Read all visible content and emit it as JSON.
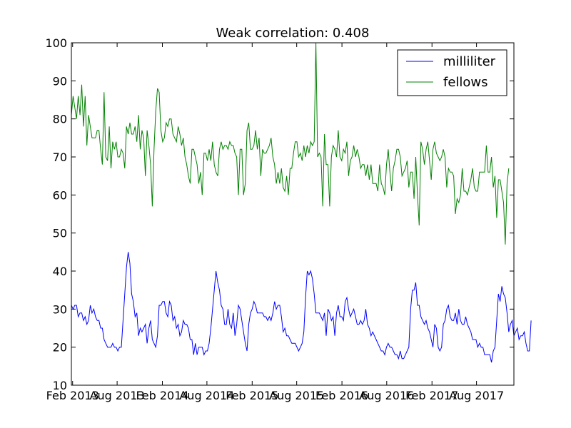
{
  "chart_data": {
    "type": "line",
    "title": "Weak correlation: 0.408",
    "xlabel": "",
    "ylabel": "",
    "ylim": [
      10,
      100
    ],
    "xlim": [
      "2013-01-27",
      "2017-12-31"
    ],
    "y_ticks": [
      10,
      20,
      30,
      40,
      50,
      60,
      70,
      80,
      90,
      100
    ],
    "x_ticks": [
      {
        "date": "2013-02-01",
        "label": "Feb 2013"
      },
      {
        "date": "2013-08-01",
        "label": "Aug 2013"
      },
      {
        "date": "2014-02-01",
        "label": "Feb 2014"
      },
      {
        "date": "2014-08-01",
        "label": "Aug 2014"
      },
      {
        "date": "2015-02-01",
        "label": "Feb 2015"
      },
      {
        "date": "2015-08-01",
        "label": "Aug 2015"
      },
      {
        "date": "2016-02-01",
        "label": "Feb 2016"
      },
      {
        "date": "2016-08-01",
        "label": "Aug 2016"
      },
      {
        "date": "2017-02-01",
        "label": "Feb 2017"
      },
      {
        "date": "2017-08-01",
        "label": "Aug 2017"
      }
    ],
    "grid": false,
    "legend_position": "top-right",
    "x_start": "2013-01-27",
    "x_step_days": 7,
    "series": [
      {
        "name": "milliliter",
        "color": "#0000ff",
        "values": [
          31,
          30,
          31,
          31,
          28,
          29,
          29,
          27,
          28,
          26,
          27,
          31,
          29,
          30,
          28,
          27,
          27,
          25,
          25,
          22,
          21,
          20,
          20,
          20,
          21,
          20,
          20,
          19,
          20,
          20,
          27,
          34,
          41,
          45,
          42,
          34,
          32,
          28,
          29,
          23,
          25,
          24,
          25,
          26,
          21,
          25,
          27,
          22,
          21,
          20,
          23,
          31,
          31,
          32,
          32,
          29,
          28,
          32,
          31,
          27,
          28,
          25,
          26,
          23,
          24,
          27,
          26,
          26,
          25,
          22,
          22,
          18,
          21,
          18,
          20,
          20,
          20,
          18,
          19,
          19,
          21,
          25,
          30,
          35,
          40,
          37,
          35,
          31,
          30,
          26,
          26,
          30,
          26,
          25,
          29,
          23,
          26,
          31,
          30,
          27,
          24,
          21,
          19,
          26,
          29,
          30,
          32,
          31,
          29,
          29,
          29,
          29,
          28,
          28,
          27,
          28,
          27,
          29,
          32,
          30,
          31,
          31,
          28,
          24,
          25,
          23,
          23,
          22,
          21,
          21,
          21,
          20,
          19,
          20,
          21,
          24,
          33,
          40,
          39,
          40,
          38,
          34,
          29,
          29,
          29,
          28,
          27,
          29,
          23,
          30,
          29,
          27,
          28,
          23,
          29,
          31,
          28,
          28,
          27,
          32,
          33,
          30,
          28,
          29,
          30,
          28,
          26,
          26,
          27,
          26,
          27,
          30,
          26,
          25,
          23,
          24,
          23,
          22,
          21,
          20,
          19,
          19,
          18,
          20,
          21,
          20,
          20,
          19,
          18,
          18,
          17,
          19,
          17,
          17,
          18,
          19,
          20,
          30,
          35,
          35,
          37,
          31,
          31,
          28,
          27,
          26,
          27,
          25,
          24,
          22,
          20,
          26,
          25,
          20,
          19,
          20,
          26,
          27,
          30,
          31,
          28,
          27,
          27,
          29,
          26,
          30,
          27,
          26,
          26,
          28,
          26,
          25,
          24,
          22,
          22,
          22,
          20,
          21,
          20,
          20,
          18,
          18,
          18,
          18,
          16,
          19,
          20,
          27,
          34,
          32,
          36,
          34,
          33,
          29,
          24,
          26,
          27,
          23,
          24,
          25,
          22,
          23,
          23,
          24,
          21,
          19,
          19,
          27
        ],
        "note": "weekly"
      },
      {
        "name": "fellows",
        "color": "#008000",
        "values": [
          81,
          86,
          83,
          80,
          86,
          81,
          89,
          78,
          86,
          73,
          81,
          78,
          75,
          75,
          75,
          77,
          77,
          72,
          68,
          87,
          70,
          69,
          78,
          67,
          74,
          72,
          74,
          70,
          70,
          72,
          71,
          67,
          78,
          76,
          79,
          76,
          76,
          78,
          74,
          81,
          72,
          77,
          75,
          65,
          77,
          73,
          68,
          57,
          72,
          82,
          88,
          87,
          77,
          74,
          75,
          79,
          78,
          80,
          80,
          76,
          75,
          74,
          78,
          76,
          73,
          75,
          70,
          68,
          65,
          63,
          72,
          72,
          70,
          68,
          63,
          66,
          60,
          71,
          71,
          69,
          72,
          69,
          74,
          68,
          66,
          65,
          72,
          74,
          72,
          73,
          73,
          72,
          74,
          73,
          73,
          71,
          70,
          60,
          72,
          72,
          60,
          63,
          77,
          79,
          72,
          72,
          73,
          77,
          72,
          75,
          65,
          72,
          71,
          71,
          72,
          73,
          75,
          70,
          68,
          63,
          66,
          63,
          67,
          62,
          61,
          65,
          60,
          67,
          67,
          71,
          74,
          74,
          70,
          71,
          69,
          73,
          70,
          73,
          71,
          74,
          73,
          74,
          100,
          70,
          71,
          70,
          57,
          76,
          68,
          68,
          57,
          70,
          73,
          72,
          70,
          77,
          70,
          69,
          72,
          71,
          74,
          65,
          69,
          70,
          73,
          70,
          72,
          70,
          67,
          68,
          68,
          65,
          68,
          64,
          68,
          63,
          63,
          63,
          61,
          68,
          63,
          62,
          60,
          68,
          72,
          66,
          61,
          67,
          69,
          72,
          72,
          70,
          65,
          66,
          67,
          69,
          62,
          66,
          66,
          59,
          70,
          60,
          52,
          74,
          72,
          68,
          72,
          74,
          69,
          64,
          72,
          74,
          71,
          70,
          69,
          70,
          72,
          70,
          62,
          67,
          66,
          66,
          65,
          55,
          59,
          58,
          60,
          67,
          61,
          61,
          60,
          62,
          64,
          67,
          62,
          61,
          61,
          66,
          66,
          66,
          66,
          73,
          66,
          66,
          70,
          62,
          65,
          54,
          64,
          64,
          61,
          58,
          47,
          63,
          67
        ],
        "note": "weekly"
      }
    ]
  }
}
